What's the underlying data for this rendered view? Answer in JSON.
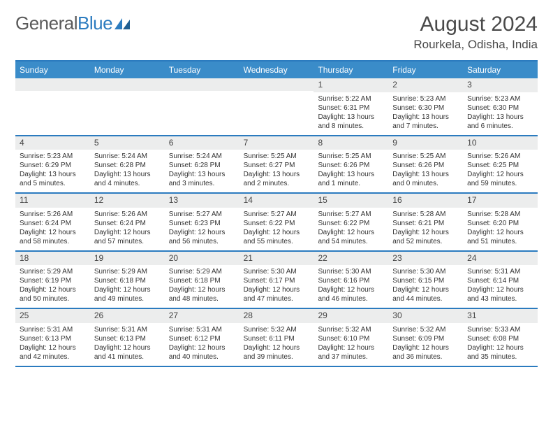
{
  "brand": {
    "word1": "General",
    "word2": "Blue"
  },
  "title": {
    "month": "August 2024",
    "location": "Rourkela, Odisha, India"
  },
  "colors": {
    "accent": "#2b7bbf",
    "header_bg": "#3a8cc9",
    "daynum_bg": "#eceded",
    "text": "#333333",
    "title_text": "#4a4a4a"
  },
  "daysOfWeek": [
    "Sunday",
    "Monday",
    "Tuesday",
    "Wednesday",
    "Thursday",
    "Friday",
    "Saturday"
  ],
  "typography": {
    "title_fontsize": 30,
    "location_fontsize": 17,
    "dow_fontsize": 12,
    "body_fontsize": 10
  },
  "weeks": [
    [
      {
        "n": "",
        "sr": "",
        "ss": "",
        "dl": ""
      },
      {
        "n": "",
        "sr": "",
        "ss": "",
        "dl": ""
      },
      {
        "n": "",
        "sr": "",
        "ss": "",
        "dl": ""
      },
      {
        "n": "",
        "sr": "",
        "ss": "",
        "dl": ""
      },
      {
        "n": "1",
        "sr": "Sunrise: 5:22 AM",
        "ss": "Sunset: 6:31 PM",
        "dl": "Daylight: 13 hours and 8 minutes."
      },
      {
        "n": "2",
        "sr": "Sunrise: 5:23 AM",
        "ss": "Sunset: 6:30 PM",
        "dl": "Daylight: 13 hours and 7 minutes."
      },
      {
        "n": "3",
        "sr": "Sunrise: 5:23 AM",
        "ss": "Sunset: 6:30 PM",
        "dl": "Daylight: 13 hours and 6 minutes."
      }
    ],
    [
      {
        "n": "4",
        "sr": "Sunrise: 5:23 AM",
        "ss": "Sunset: 6:29 PM",
        "dl": "Daylight: 13 hours and 5 minutes."
      },
      {
        "n": "5",
        "sr": "Sunrise: 5:24 AM",
        "ss": "Sunset: 6:28 PM",
        "dl": "Daylight: 13 hours and 4 minutes."
      },
      {
        "n": "6",
        "sr": "Sunrise: 5:24 AM",
        "ss": "Sunset: 6:28 PM",
        "dl": "Daylight: 13 hours and 3 minutes."
      },
      {
        "n": "7",
        "sr": "Sunrise: 5:25 AM",
        "ss": "Sunset: 6:27 PM",
        "dl": "Daylight: 13 hours and 2 minutes."
      },
      {
        "n": "8",
        "sr": "Sunrise: 5:25 AM",
        "ss": "Sunset: 6:26 PM",
        "dl": "Daylight: 13 hours and 1 minute."
      },
      {
        "n": "9",
        "sr": "Sunrise: 5:25 AM",
        "ss": "Sunset: 6:26 PM",
        "dl": "Daylight: 13 hours and 0 minutes."
      },
      {
        "n": "10",
        "sr": "Sunrise: 5:26 AM",
        "ss": "Sunset: 6:25 PM",
        "dl": "Daylight: 12 hours and 59 minutes."
      }
    ],
    [
      {
        "n": "11",
        "sr": "Sunrise: 5:26 AM",
        "ss": "Sunset: 6:24 PM",
        "dl": "Daylight: 12 hours and 58 minutes."
      },
      {
        "n": "12",
        "sr": "Sunrise: 5:26 AM",
        "ss": "Sunset: 6:24 PM",
        "dl": "Daylight: 12 hours and 57 minutes."
      },
      {
        "n": "13",
        "sr": "Sunrise: 5:27 AM",
        "ss": "Sunset: 6:23 PM",
        "dl": "Daylight: 12 hours and 56 minutes."
      },
      {
        "n": "14",
        "sr": "Sunrise: 5:27 AM",
        "ss": "Sunset: 6:22 PM",
        "dl": "Daylight: 12 hours and 55 minutes."
      },
      {
        "n": "15",
        "sr": "Sunrise: 5:27 AM",
        "ss": "Sunset: 6:22 PM",
        "dl": "Daylight: 12 hours and 54 minutes."
      },
      {
        "n": "16",
        "sr": "Sunrise: 5:28 AM",
        "ss": "Sunset: 6:21 PM",
        "dl": "Daylight: 12 hours and 52 minutes."
      },
      {
        "n": "17",
        "sr": "Sunrise: 5:28 AM",
        "ss": "Sunset: 6:20 PM",
        "dl": "Daylight: 12 hours and 51 minutes."
      }
    ],
    [
      {
        "n": "18",
        "sr": "Sunrise: 5:29 AM",
        "ss": "Sunset: 6:19 PM",
        "dl": "Daylight: 12 hours and 50 minutes."
      },
      {
        "n": "19",
        "sr": "Sunrise: 5:29 AM",
        "ss": "Sunset: 6:18 PM",
        "dl": "Daylight: 12 hours and 49 minutes."
      },
      {
        "n": "20",
        "sr": "Sunrise: 5:29 AM",
        "ss": "Sunset: 6:18 PM",
        "dl": "Daylight: 12 hours and 48 minutes."
      },
      {
        "n": "21",
        "sr": "Sunrise: 5:30 AM",
        "ss": "Sunset: 6:17 PM",
        "dl": "Daylight: 12 hours and 47 minutes."
      },
      {
        "n": "22",
        "sr": "Sunrise: 5:30 AM",
        "ss": "Sunset: 6:16 PM",
        "dl": "Daylight: 12 hours and 46 minutes."
      },
      {
        "n": "23",
        "sr": "Sunrise: 5:30 AM",
        "ss": "Sunset: 6:15 PM",
        "dl": "Daylight: 12 hours and 44 minutes."
      },
      {
        "n": "24",
        "sr": "Sunrise: 5:31 AM",
        "ss": "Sunset: 6:14 PM",
        "dl": "Daylight: 12 hours and 43 minutes."
      }
    ],
    [
      {
        "n": "25",
        "sr": "Sunrise: 5:31 AM",
        "ss": "Sunset: 6:13 PM",
        "dl": "Daylight: 12 hours and 42 minutes."
      },
      {
        "n": "26",
        "sr": "Sunrise: 5:31 AM",
        "ss": "Sunset: 6:13 PM",
        "dl": "Daylight: 12 hours and 41 minutes."
      },
      {
        "n": "27",
        "sr": "Sunrise: 5:31 AM",
        "ss": "Sunset: 6:12 PM",
        "dl": "Daylight: 12 hours and 40 minutes."
      },
      {
        "n": "28",
        "sr": "Sunrise: 5:32 AM",
        "ss": "Sunset: 6:11 PM",
        "dl": "Daylight: 12 hours and 39 minutes."
      },
      {
        "n": "29",
        "sr": "Sunrise: 5:32 AM",
        "ss": "Sunset: 6:10 PM",
        "dl": "Daylight: 12 hours and 37 minutes."
      },
      {
        "n": "30",
        "sr": "Sunrise: 5:32 AM",
        "ss": "Sunset: 6:09 PM",
        "dl": "Daylight: 12 hours and 36 minutes."
      },
      {
        "n": "31",
        "sr": "Sunrise: 5:33 AM",
        "ss": "Sunset: 6:08 PM",
        "dl": "Daylight: 12 hours and 35 minutes."
      }
    ]
  ]
}
